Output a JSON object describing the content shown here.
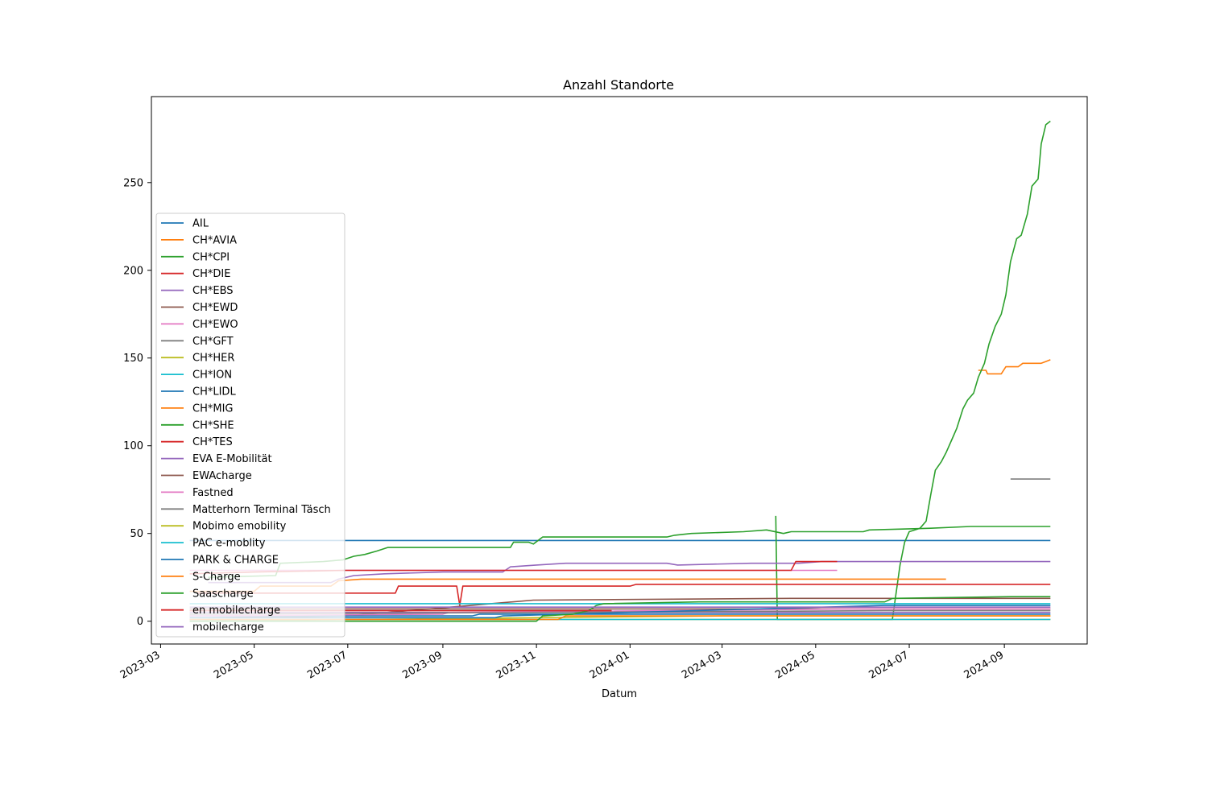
{
  "chart_data": {
    "type": "line",
    "title": "Anzahl Standorte",
    "xlabel": "Datum",
    "ylabel": "",
    "xlim": [
      "2023-02-23",
      "2024-10-25"
    ],
    "ylim": [
      -13,
      299
    ],
    "xticks": [
      "2023-03",
      "2023-05",
      "2023-07",
      "2023-09",
      "2023-11",
      "2024-01",
      "2024-03",
      "2024-05",
      "2024-07",
      "2024-09"
    ],
    "yticks": [
      0,
      50,
      100,
      150,
      200,
      250
    ],
    "legend_position": "center-left",
    "series": [
      {
        "name": "AIL",
        "color": "#1f77b4",
        "points": [
          [
            "2023-03-20",
            46
          ],
          [
            "2024-10-01",
            46
          ]
        ]
      },
      {
        "name": "CH*AVIA",
        "color": "#ff7f0e",
        "points": [
          [
            "2024-08-15",
            143
          ],
          [
            "2024-08-20",
            143
          ],
          [
            "2024-08-21",
            141
          ],
          [
            "2024-08-30",
            141
          ],
          [
            "2024-09-02",
            145
          ],
          [
            "2024-09-10",
            145
          ],
          [
            "2024-09-13",
            147
          ],
          [
            "2024-09-25",
            147
          ],
          [
            "2024-09-28",
            148
          ],
          [
            "2024-10-01",
            149
          ]
        ]
      },
      {
        "name": "CH*CPI",
        "color": "#2ca02c",
        "points": [
          [
            "2024-04-05",
            60
          ],
          [
            "2024-04-06",
            1
          ],
          [
            "2024-06-20",
            1
          ],
          [
            "2024-06-25",
            32
          ],
          [
            "2024-06-28",
            45
          ],
          [
            "2024-07-01",
            51
          ],
          [
            "2024-07-08",
            53
          ],
          [
            "2024-07-12",
            57
          ],
          [
            "2024-07-15",
            72
          ],
          [
            "2024-07-18",
            86
          ],
          [
            "2024-07-22",
            91
          ],
          [
            "2024-07-25",
            96
          ],
          [
            "2024-07-29",
            104
          ],
          [
            "2024-08-01",
            110
          ],
          [
            "2024-08-05",
            121
          ],
          [
            "2024-08-08",
            126
          ],
          [
            "2024-08-12",
            130
          ],
          [
            "2024-08-15",
            139
          ],
          [
            "2024-08-19",
            147
          ],
          [
            "2024-08-22",
            158
          ],
          [
            "2024-08-26",
            168
          ],
          [
            "2024-08-30",
            175
          ],
          [
            "2024-09-02",
            186
          ],
          [
            "2024-09-05",
            205
          ],
          [
            "2024-09-09",
            218
          ],
          [
            "2024-09-12",
            220
          ],
          [
            "2024-09-16",
            232
          ],
          [
            "2024-09-19",
            248
          ],
          [
            "2024-09-23",
            252
          ],
          [
            "2024-09-25",
            272
          ],
          [
            "2024-09-28",
            283
          ],
          [
            "2024-10-01",
            285
          ]
        ]
      },
      {
        "name": "CH*DIE",
        "color": "#d62728",
        "points": [
          [
            "2023-03-25",
            16
          ],
          [
            "2023-07-01",
            16
          ],
          [
            "2023-08-01",
            16
          ],
          [
            "2023-08-03",
            20
          ],
          [
            "2023-09-10",
            20
          ],
          [
            "2023-09-12",
            9
          ],
          [
            "2023-09-14",
            20
          ],
          [
            "2024-01-01",
            20
          ],
          [
            "2024-01-05",
            21
          ],
          [
            "2024-10-01",
            21
          ]
        ]
      },
      {
        "name": "CH*EBS",
        "color": "#9467bd",
        "points": [
          [
            "2023-04-01",
            22
          ],
          [
            "2023-06-20",
            22
          ],
          [
            "2023-06-25",
            24
          ],
          [
            "2023-07-05",
            26
          ],
          [
            "2023-07-25",
            27
          ],
          [
            "2023-09-01",
            28
          ],
          [
            "2023-10-10",
            28
          ],
          [
            "2023-10-15",
            31
          ],
          [
            "2023-11-01",
            32
          ],
          [
            "2023-11-20",
            33
          ],
          [
            "2024-01-25",
            33
          ],
          [
            "2024-02-01",
            32
          ],
          [
            "2024-03-20",
            33
          ],
          [
            "2024-04-20",
            33
          ],
          [
            "2024-05-05",
            34
          ],
          [
            "2024-10-01",
            34
          ]
        ]
      },
      {
        "name": "CH*EWD",
        "color": "#8c564b",
        "points": [
          [
            "2023-04-01",
            2
          ],
          [
            "2023-06-30",
            3
          ],
          [
            "2023-10-30",
            12
          ],
          [
            "2024-04-15",
            13
          ],
          [
            "2024-10-01",
            13
          ]
        ]
      },
      {
        "name": "CH*EWO",
        "color": "#e377c2",
        "points": [
          [
            "2023-03-20",
            29
          ],
          [
            "2024-05-15",
            29
          ]
        ]
      },
      {
        "name": "CH*GFT",
        "color": "#7f7f7f",
        "points": [
          [
            "2024-09-05",
            81
          ],
          [
            "2024-10-01",
            81
          ]
        ]
      },
      {
        "name": "CH*HER",
        "color": "#bcbd22",
        "points": [
          [
            "2023-03-20",
            1
          ],
          [
            "2024-10-01",
            1
          ]
        ]
      },
      {
        "name": "CH*ION",
        "color": "#17becf",
        "points": [
          [
            "2023-03-20",
            10
          ],
          [
            "2024-10-01",
            10
          ]
        ]
      },
      {
        "name": "CH*LIDL",
        "color": "#1f77b4",
        "points": [
          [
            "2023-03-20",
            3
          ],
          [
            "2023-09-20",
            3
          ],
          [
            "2023-09-25",
            4
          ],
          [
            "2024-10-01",
            4
          ]
        ]
      },
      {
        "name": "CH*MIG",
        "color": "#ff7f0e",
        "points": [
          [
            "2023-03-20",
            17
          ],
          [
            "2023-05-01",
            17
          ],
          [
            "2023-05-05",
            20
          ],
          [
            "2023-06-20",
            20
          ],
          [
            "2023-06-25",
            23
          ],
          [
            "2023-07-10",
            24
          ],
          [
            "2024-07-25",
            24
          ]
        ]
      },
      {
        "name": "CH*SHE",
        "color": "#2ca02c",
        "points": [
          [
            "2023-04-01",
            25
          ],
          [
            "2023-05-15",
            26
          ],
          [
            "2023-05-18",
            33
          ],
          [
            "2023-06-15",
            34
          ],
          [
            "2023-06-28",
            35
          ],
          [
            "2023-07-05",
            37
          ],
          [
            "2023-07-12",
            38
          ],
          [
            "2023-07-20",
            40
          ],
          [
            "2023-07-27",
            42
          ],
          [
            "2023-10-15",
            42
          ],
          [
            "2023-10-17",
            45
          ],
          [
            "2023-10-27",
            45
          ],
          [
            "2023-10-30",
            44
          ],
          [
            "2023-11-05",
            48
          ],
          [
            "2024-01-25",
            48
          ],
          [
            "2024-01-30",
            49
          ],
          [
            "2024-02-10",
            50
          ],
          [
            "2024-03-15",
            51
          ],
          [
            "2024-03-30",
            52
          ],
          [
            "2024-04-10",
            50
          ],
          [
            "2024-04-15",
            51
          ],
          [
            "2024-06-01",
            51
          ],
          [
            "2024-06-05",
            52
          ],
          [
            "2024-07-15",
            53
          ],
          [
            "2024-08-10",
            54
          ],
          [
            "2024-10-01",
            54
          ]
        ]
      },
      {
        "name": "CH*TES",
        "color": "#d62728",
        "points": [
          [
            "2023-03-20",
            27
          ],
          [
            "2023-05-01",
            28
          ],
          [
            "2023-06-30",
            29
          ],
          [
            "2024-04-15",
            29
          ],
          [
            "2024-04-18",
            34
          ],
          [
            "2024-05-15",
            34
          ]
        ]
      },
      {
        "name": "EVA E-Mobilität",
        "color": "#9467bd",
        "points": [
          [
            "2023-03-20",
            5
          ],
          [
            "2024-10-01",
            5
          ]
        ]
      },
      {
        "name": "EWAcharge",
        "color": "#8c564b",
        "points": [
          [
            "2023-03-20",
            7
          ],
          [
            "2024-10-01",
            7
          ]
        ]
      },
      {
        "name": "Fastned",
        "color": "#e377c2",
        "points": [
          [
            "2023-03-20",
            3
          ],
          [
            "2023-09-01",
            4
          ],
          [
            "2023-09-05",
            5
          ],
          [
            "2024-06-01",
            7
          ],
          [
            "2024-10-01",
            7
          ]
        ]
      },
      {
        "name": "Matterhorn Terminal Täsch",
        "color": "#7f7f7f",
        "points": [
          [
            "2023-03-20",
            4
          ],
          [
            "2023-11-01",
            5
          ],
          [
            "2024-06-15",
            6
          ],
          [
            "2024-10-01",
            6
          ]
        ]
      },
      {
        "name": "Mobimo emobility",
        "color": "#bcbd22",
        "points": [
          [
            "2023-03-20",
            0
          ],
          [
            "2023-11-01",
            2
          ],
          [
            "2024-03-01",
            3
          ],
          [
            "2024-10-01",
            3
          ]
        ]
      },
      {
        "name": "PAC e-moblity",
        "color": "#17becf",
        "points": [
          [
            "2023-03-20",
            1
          ],
          [
            "2024-10-01",
            1
          ]
        ]
      },
      {
        "name": "PARK & CHARGE",
        "color": "#1f77b4",
        "points": [
          [
            "2023-03-20",
            2
          ],
          [
            "2023-10-05",
            2
          ],
          [
            "2023-10-10",
            3
          ],
          [
            "2024-06-15",
            9
          ],
          [
            "2024-10-01",
            9
          ]
        ]
      },
      {
        "name": "S-Charge",
        "color": "#ff7f0e",
        "points": [
          [
            "2023-03-20",
            1
          ],
          [
            "2023-11-15",
            1
          ],
          [
            "2023-11-20",
            3
          ],
          [
            "2024-10-01",
            3
          ]
        ]
      },
      {
        "name": "Saascharge",
        "color": "#2ca02c",
        "points": [
          [
            "2023-03-20",
            0
          ],
          [
            "2023-11-01",
            0
          ],
          [
            "2023-11-05",
            3
          ],
          [
            "2023-11-25",
            4
          ],
          [
            "2023-12-05",
            6
          ],
          [
            "2023-12-10",
            9
          ],
          [
            "2023-12-15",
            10
          ],
          [
            "2024-02-15",
            11
          ],
          [
            "2024-06-15",
            11
          ],
          [
            "2024-06-20",
            13
          ],
          [
            "2024-09-05",
            14
          ],
          [
            "2024-10-01",
            14
          ]
        ]
      },
      {
        "name": "en mobilecharge",
        "color": "#d62728",
        "points": [
          [
            "2023-03-20",
            6
          ],
          [
            "2023-12-20",
            6
          ]
        ]
      },
      {
        "name": "mobilecharge",
        "color": "#9467bd",
        "points": [
          [
            "2023-03-20",
            8
          ],
          [
            "2024-10-01",
            8
          ]
        ]
      }
    ]
  }
}
